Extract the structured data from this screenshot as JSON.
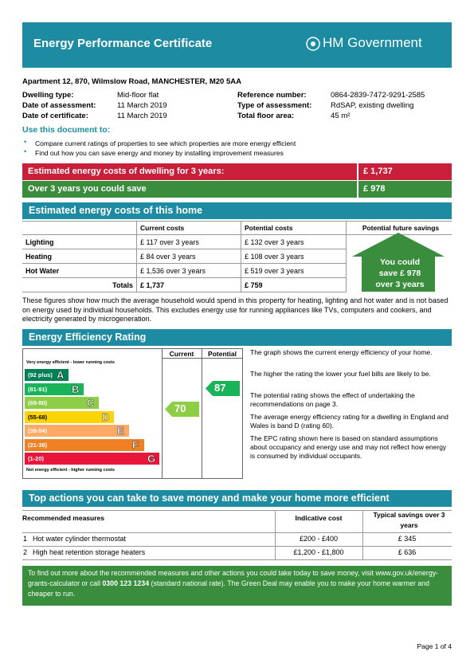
{
  "header": {
    "title": "Energy Performance Certificate",
    "logo": "HM Government"
  },
  "property": {
    "address": "Apartment 12, 870, Wilmslow Road, MANCHESTER, M20 5AA",
    "left": [
      [
        "Dwelling type:",
        "Mid-floor flat"
      ],
      [
        "Date of assessment:",
        "11 March 2019"
      ],
      [
        "Date of certificate:",
        "11 March 2019"
      ]
    ],
    "right": [
      [
        "Reference number:",
        "0864-2839-7472-9291-2585"
      ],
      [
        "Type of assessment:",
        "RdSAP, existing dwelling"
      ],
      [
        "Total floor area:",
        "45 m²"
      ]
    ]
  },
  "use": {
    "heading": "Use this document to:",
    "bullets": [
      "Compare current ratings of properties to see which properties are more energy efficient",
      "Find out how you can save energy and money by installing improvement measures"
    ]
  },
  "summary": [
    [
      "Estimated energy costs of dwelling for 3 years:",
      "£ 1,737"
    ],
    [
      "Over 3 years you could save",
      "£ 978"
    ]
  ],
  "costs": {
    "heading": "Estimated energy costs of this home",
    "columns": [
      "Current costs",
      "Potential costs",
      "Potential future savings"
    ],
    "rows": [
      [
        "Lighting",
        "£ 117 over 3 years",
        "£ 132 over 3 years"
      ],
      [
        "Heating",
        "£ 84 over 3 years",
        "£ 108 over 3 years"
      ],
      [
        "Hot Water",
        "£ 1,536 over 3 years",
        "£ 519 over 3 years"
      ],
      [
        "Totals",
        "£ 1,737",
        "£ 759"
      ]
    ],
    "savings": [
      "You could",
      "save £ 978",
      "over 3 years"
    ],
    "note": "These figures show how much the average household would spend in this property for heating, lighting and hot water and is not based on energy used by individual households. This excludes energy use for running appliances like TVs, computers and cookers, and electricity generated by microgeneration."
  },
  "rating": {
    "heading": "Energy Efficiency Rating",
    "columns": [
      "Current",
      "Potential"
    ],
    "top": "Very energy efficient - lower running costs",
    "bottom": "Not energy efficient - higher running costs",
    "bands": [
      [
        "(92 plus)",
        "A"
      ],
      [
        "(81-91)",
        "B"
      ],
      [
        "(69-80)",
        "C"
      ],
      [
        "(55-68)",
        "D"
      ],
      [
        "(39-54)",
        "E"
      ],
      [
        "(21-38)",
        "F"
      ],
      [
        "(1-20)",
        "G"
      ]
    ],
    "current": 70,
    "potential": 87,
    "notes": [
      "The graph shows the current energy efficiency of your home.",
      "The higher the rating the lower your fuel bills are likely to be.",
      "The potential rating shows the effect of undertaking the recommendations on page 3.",
      "The average energy efficiency rating for a dwelling in England and Wales is band D (rating 60).",
      "The EPC rating shown here is based on standard assumptions about occupancy and energy use and may not reflect how energy is consumed by individual occupants."
    ]
  },
  "actions": {
    "heading": "Top actions you can take to save money and make your home more efficient",
    "columns": [
      "Recommended measures",
      "Indicative cost",
      "Typical savings over 3 years"
    ],
    "rows": [
      [
        "1",
        "Hot water cylinder thermostat",
        "£200 - £400",
        "£ 345"
      ],
      [
        "2",
        "High heat retention storage heaters",
        "£1,200 - £1,800",
        "£ 636"
      ]
    ]
  },
  "footer": {
    "parts": [
      "To find out more about the recommended measures and other actions you could take today to save money, visit www.gov.uk/energy-grants-calculator or call ",
      "0300 123 1234",
      " (standard national rate). The Green Deal may enable you to make your home warmer and cheaper to run."
    ],
    "page": "Page 1 of 4"
  }
}
